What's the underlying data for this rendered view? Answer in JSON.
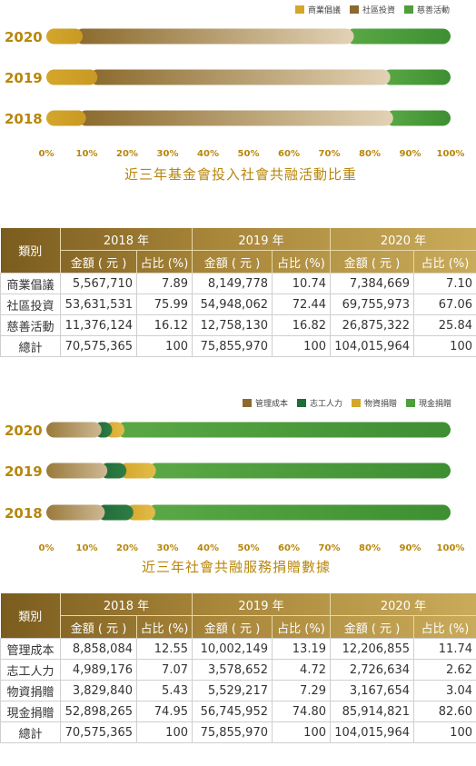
{
  "chart1": {
    "legend": [
      {
        "label": "商業倡議",
        "color": "#d4a62a"
      },
      {
        "label": "社區投資",
        "color": "#8b6a2c"
      },
      {
        "label": "慈善活動",
        "color": "#4f9e3c"
      }
    ],
    "caption": "近三年基金會投入社會共融活動比重",
    "x_ticks": [
      "0%",
      "10%",
      "20%",
      "30%",
      "40%",
      "50%",
      "60%",
      "70%",
      "80%",
      "90%",
      "100%"
    ]
  },
  "chart2": {
    "legend": [
      {
        "label": "管理成本",
        "color": "#8b6a2c"
      },
      {
        "label": "志工人力",
        "color": "#1f6b3a"
      },
      {
        "label": "物資捐贈",
        "color": "#d4a62a"
      },
      {
        "label": "現金捐贈",
        "color": "#4f9e3c"
      }
    ],
    "caption": "近三年社會共融服務捐贈數據",
    "x_ticks": [
      "0%",
      "10%",
      "20%",
      "30%",
      "40%",
      "50%",
      "60%",
      "70%",
      "80%",
      "90%",
      "100%"
    ]
  },
  "chart_data": [
    {
      "type": "bar",
      "orientation": "horizontal",
      "stacked": true,
      "categories": [
        "2020",
        "2019",
        "2018"
      ],
      "series": [
        {
          "name": "商業倡議",
          "values": [
            7.1,
            10.74,
            7.89
          ]
        },
        {
          "name": "社區投資",
          "values": [
            67.06,
            72.44,
            75.99
          ]
        },
        {
          "name": "慈善活動",
          "values": [
            25.84,
            16.82,
            16.12
          ]
        }
      ],
      "title": "近三年基金會投入社會共融活動比重",
      "xlim": [
        0,
        100
      ],
      "legend_position": "top-right"
    },
    {
      "type": "bar",
      "orientation": "horizontal",
      "stacked": true,
      "categories": [
        "2020",
        "2019",
        "2018"
      ],
      "series": [
        {
          "name": "管理成本",
          "values": [
            11.74,
            13.19,
            12.55
          ]
        },
        {
          "name": "志工人力",
          "values": [
            2.62,
            4.72,
            7.07
          ]
        },
        {
          "name": "物資捐贈",
          "values": [
            3.04,
            7.29,
            5.43
          ]
        },
        {
          "name": "現金捐贈",
          "values": [
            82.6,
            74.8,
            74.95
          ]
        }
      ],
      "title": "近三年社會共融服務捐贈數據",
      "xlim": [
        0,
        100
      ],
      "legend_position": "top-right"
    }
  ],
  "table1": {
    "cat_header": "類別",
    "years": [
      "2018 年",
      "2019 年",
      "2020 年"
    ],
    "amount_header": "金額 ( 元 )",
    "pct_header": "占比 (%)",
    "rows": [
      {
        "cat": "商業倡議",
        "v": [
          "5,567,710",
          "7.89",
          "8,149,778",
          "10.74",
          "7,384,669",
          "7.10"
        ]
      },
      {
        "cat": "社區投資",
        "v": [
          "53,631,531",
          "75.99",
          "54,948,062",
          "72.44",
          "69,755,973",
          "67.06"
        ]
      },
      {
        "cat": "慈善活動",
        "v": [
          "11,376,124",
          "16.12",
          "12,758,130",
          "16.82",
          "26,875,322",
          "25.84"
        ]
      },
      {
        "cat": "總計",
        "v": [
          "70,575,365",
          "100",
          "75,855,970",
          "100",
          "104,015,964",
          "100"
        ]
      }
    ]
  },
  "table2": {
    "cat_header": "類別",
    "years": [
      "2018 年",
      "2019 年",
      "2020 年"
    ],
    "amount_header": "金額 ( 元 )",
    "pct_header": "占比 (%)",
    "rows": [
      {
        "cat": "管理成本",
        "v": [
          "8,858,084",
          "12.55",
          "10,002,149",
          "13.19",
          "12,206,855",
          "11.74"
        ]
      },
      {
        "cat": "志工人力",
        "v": [
          "4,989,176",
          "7.07",
          "3,578,652",
          "4.72",
          "2,726,634",
          "2.62"
        ]
      },
      {
        "cat": "物資捐贈",
        "v": [
          "3,829,840",
          "5.43",
          "5,529,217",
          "7.29",
          "3,167,654",
          "3.04"
        ]
      },
      {
        "cat": "現金捐贈",
        "v": [
          "52,898,265",
          "74.95",
          "56,745,952",
          "74.80",
          "85,914,821",
          "82.60"
        ]
      },
      {
        "cat": "總計",
        "v": [
          "70,575,365",
          "100",
          "75,855,970",
          "100",
          "104,015,964",
          "100"
        ]
      }
    ]
  }
}
